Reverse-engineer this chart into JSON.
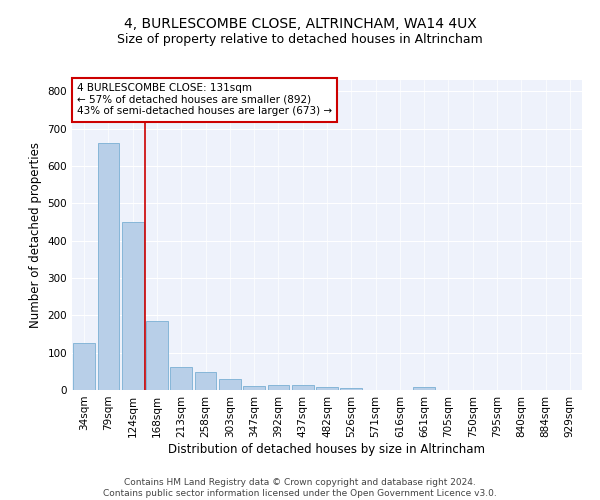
{
  "title1": "4, BURLESCOMBE CLOSE, ALTRINCHAM, WA14 4UX",
  "title2": "Size of property relative to detached houses in Altrincham",
  "xlabel": "Distribution of detached houses by size in Altrincham",
  "ylabel": "Number of detached properties",
  "categories": [
    "34sqm",
    "79sqm",
    "124sqm",
    "168sqm",
    "213sqm",
    "258sqm",
    "303sqm",
    "347sqm",
    "392sqm",
    "437sqm",
    "482sqm",
    "526sqm",
    "571sqm",
    "616sqm",
    "661sqm",
    "705sqm",
    "750sqm",
    "795sqm",
    "840sqm",
    "884sqm",
    "929sqm"
  ],
  "values": [
    125,
    660,
    450,
    185,
    62,
    47,
    29,
    11,
    14,
    14,
    8,
    5,
    0,
    0,
    8,
    0,
    0,
    0,
    0,
    0,
    0
  ],
  "bar_color": "#b8cfe8",
  "bar_edge_color": "#7aafd4",
  "vline_x_index": 2,
  "vline_color": "#cc0000",
  "annotation_lines": [
    "4 BURLESCOMBE CLOSE: 131sqm",
    "← 57% of detached houses are smaller (892)",
    "43% of semi-detached houses are larger (673) →"
  ],
  "annotation_box_color": "#ffffff",
  "annotation_box_edge": "#cc0000",
  "ylim": [
    0,
    830
  ],
  "yticks": [
    0,
    100,
    200,
    300,
    400,
    500,
    600,
    700,
    800
  ],
  "bg_color": "#eef2fb",
  "footer": "Contains HM Land Registry data © Crown copyright and database right 2024.\nContains public sector information licensed under the Open Government Licence v3.0.",
  "title1_fontsize": 10,
  "title2_fontsize": 9,
  "xlabel_fontsize": 8.5,
  "ylabel_fontsize": 8.5,
  "tick_fontsize": 7.5,
  "annotation_fontsize": 7.5,
  "footer_fontsize": 6.5
}
